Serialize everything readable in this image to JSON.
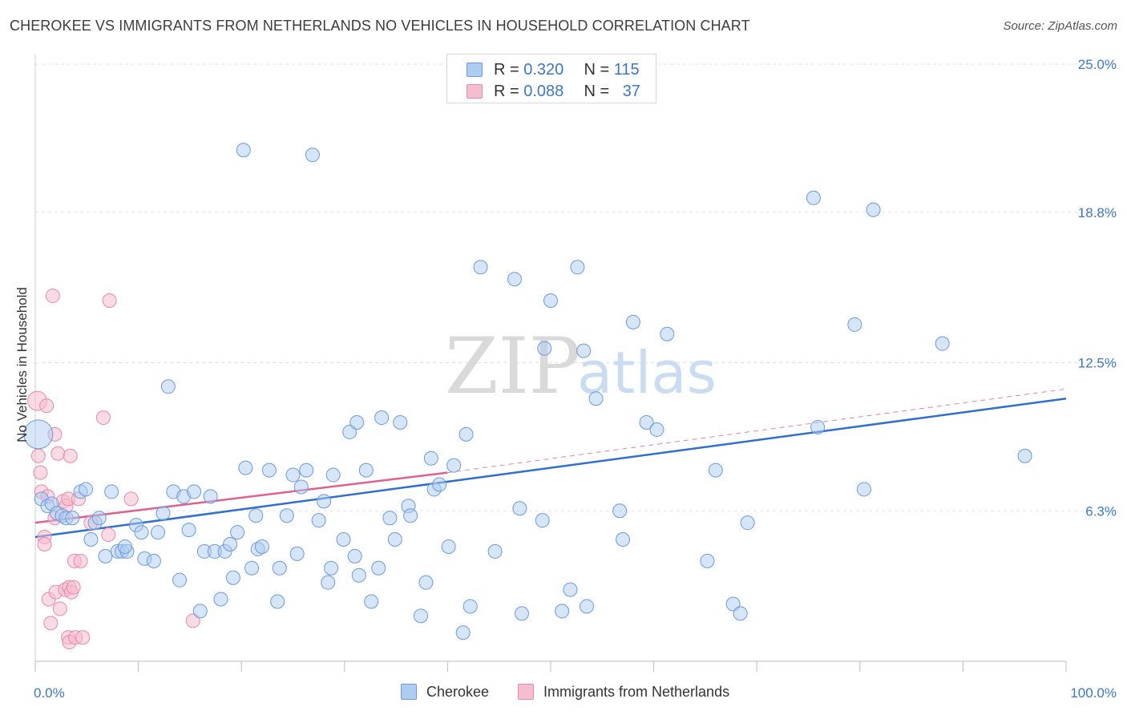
{
  "header": {
    "title": "CHEROKEE VS IMMIGRANTS FROM NETHERLANDS NO VEHICLES IN HOUSEHOLD CORRELATION CHART",
    "source": "Source: ZipAtlas.com"
  },
  "watermark": {
    "zip": "ZIP",
    "atlas": "atlas"
  },
  "legend_top": {
    "rows": [
      {
        "r_label": "R = ",
        "r_value": "0.320",
        "n_label": "N = ",
        "n_value": "115"
      },
      {
        "r_label": "R = ",
        "r_value": "0.088",
        "n_label": "N = ",
        "n_value": "37"
      }
    ]
  },
  "legend_bottom": {
    "items": [
      "Cherokee",
      "Immigrants from Netherlands"
    ]
  },
  "colors": {
    "blue_fill": "#aecbf0",
    "blue_stroke": "#6a9be0",
    "blue_line": "#2f6fd0",
    "pink_fill": "#f6bcd0",
    "pink_stroke": "#e889a8",
    "pink_line": "#e0608e",
    "axis_label": "#3b78c8",
    "grid": "#e3e3e3"
  },
  "chart_data": {
    "type": "scatter",
    "title": "CHEROKEE VS IMMIGRANTS FROM NETHERLANDS NO VEHICLES IN HOUSEHOLD CORRELATION CHART",
    "xlabel": "",
    "ylabel": "No Vehicles in Household",
    "xlim": [
      0,
      100
    ],
    "ylim": [
      0,
      25
    ],
    "x_tick_labels": [
      "0.0%",
      "100.0%"
    ],
    "y_ticks": [
      6.3,
      12.5,
      18.8,
      25.0
    ],
    "y_tick_labels": [
      "6.3%",
      "12.5%",
      "18.8%",
      "25.0%"
    ],
    "grid": true,
    "legend_position": "top-center",
    "series": [
      {
        "name": "Cherokee",
        "r": 0.32,
        "n": 115,
        "trend": {
          "x": [
            0,
            100
          ],
          "y": [
            5.2,
            11.0
          ],
          "style": "solid"
        },
        "points": [
          [
            0.3,
            9.5
          ],
          [
            0.6,
            6.8
          ],
          [
            1.2,
            6.5
          ],
          [
            1.6,
            6.6
          ],
          [
            2.1,
            6.2
          ],
          [
            2.6,
            6.1
          ],
          [
            3.0,
            6.0
          ],
          [
            3.6,
            6.0
          ],
          [
            4.4,
            7.1
          ],
          [
            4.9,
            7.2
          ],
          [
            5.8,
            5.8
          ],
          [
            5.4,
            5.1
          ],
          [
            6.2,
            6.0
          ],
          [
            6.8,
            4.4
          ],
          [
            7.4,
            7.1
          ],
          [
            8.0,
            4.6
          ],
          [
            8.4,
            4.6
          ],
          [
            8.9,
            4.6
          ],
          [
            8.7,
            4.8
          ],
          [
            9.8,
            5.7
          ],
          [
            10.3,
            5.4
          ],
          [
            10.6,
            4.3
          ],
          [
            11.5,
            4.2
          ],
          [
            11.9,
            5.4
          ],
          [
            12.4,
            6.2
          ],
          [
            12.9,
            11.5
          ],
          [
            13.4,
            7.1
          ],
          [
            14.0,
            3.4
          ],
          [
            14.4,
            6.9
          ],
          [
            14.9,
            5.5
          ],
          [
            15.4,
            7.1
          ],
          [
            16.0,
            2.1
          ],
          [
            16.4,
            4.6
          ],
          [
            17.0,
            6.9
          ],
          [
            17.4,
            4.6
          ],
          [
            18.0,
            2.6
          ],
          [
            18.4,
            4.6
          ],
          [
            18.9,
            4.9
          ],
          [
            19.2,
            3.5
          ],
          [
            19.6,
            5.4
          ],
          [
            20.2,
            21.4
          ],
          [
            20.4,
            8.1
          ],
          [
            21.0,
            3.9
          ],
          [
            21.4,
            6.1
          ],
          [
            21.6,
            4.7
          ],
          [
            22.0,
            4.8
          ],
          [
            22.7,
            8.0
          ],
          [
            23.5,
            2.5
          ],
          [
            23.7,
            3.9
          ],
          [
            24.4,
            6.1
          ],
          [
            25.0,
            7.8
          ],
          [
            25.4,
            4.5
          ],
          [
            25.8,
            7.3
          ],
          [
            26.3,
            8.0
          ],
          [
            26.9,
            21.2
          ],
          [
            27.5,
            5.9
          ],
          [
            28.0,
            6.7
          ],
          [
            28.4,
            3.3
          ],
          [
            28.9,
            7.8
          ],
          [
            28.7,
            3.9
          ],
          [
            29.9,
            5.1
          ],
          [
            31.0,
            4.4
          ],
          [
            31.4,
            3.6
          ],
          [
            30.5,
            9.6
          ],
          [
            31.2,
            10.0
          ],
          [
            32.1,
            8.0
          ],
          [
            32.6,
            2.5
          ],
          [
            33.3,
            3.9
          ],
          [
            33.6,
            10.2
          ],
          [
            34.4,
            6.0
          ],
          [
            34.9,
            5.1
          ],
          [
            35.4,
            10.0
          ],
          [
            36.2,
            6.5
          ],
          [
            36.4,
            6.1
          ],
          [
            37.4,
            1.9
          ],
          [
            37.9,
            3.3
          ],
          [
            38.4,
            8.5
          ],
          [
            38.7,
            7.2
          ],
          [
            39.2,
            7.4
          ],
          [
            40.1,
            4.8
          ],
          [
            40.6,
            8.2
          ],
          [
            41.5,
            1.2
          ],
          [
            41.8,
            9.5
          ],
          [
            42.2,
            2.3
          ],
          [
            43.2,
            16.5
          ],
          [
            44.6,
            4.6
          ],
          [
            47.2,
            2.0
          ],
          [
            46.5,
            16.0
          ],
          [
            47.0,
            6.4
          ],
          [
            49.2,
            5.9
          ],
          [
            49.4,
            13.1
          ],
          [
            50.0,
            15.1
          ],
          [
            51.1,
            2.1
          ],
          [
            51.9,
            3.0
          ],
          [
            52.6,
            16.5
          ],
          [
            53.2,
            13.0
          ],
          [
            53.5,
            2.3
          ],
          [
            54.4,
            11.0
          ],
          [
            56.7,
            6.3
          ],
          [
            57.0,
            5.1
          ],
          [
            58.0,
            14.2
          ],
          [
            59.3,
            10.0
          ],
          [
            60.3,
            9.7
          ],
          [
            61.3,
            13.7
          ],
          [
            65.2,
            4.2
          ],
          [
            66.0,
            8.0
          ],
          [
            67.7,
            2.4
          ],
          [
            68.4,
            2.0
          ],
          [
            69.1,
            5.8
          ],
          [
            75.5,
            19.4
          ],
          [
            75.9,
            9.8
          ],
          [
            79.5,
            14.1
          ],
          [
            80.4,
            7.2
          ],
          [
            81.3,
            18.9
          ],
          [
            88.0,
            13.3
          ],
          [
            96.0,
            8.6
          ]
        ]
      },
      {
        "name": "Immigrants from Netherlands",
        "r": 0.088,
        "n": 37,
        "trend": {
          "x": [
            0,
            40
          ],
          "y": [
            5.8,
            7.9
          ],
          "style": "solid",
          "extended": {
            "x": [
              40,
              100
            ],
            "y": [
              7.9,
              11.4
            ],
            "style": "dashed"
          }
        },
        "points": [
          [
            0.2,
            10.9
          ],
          [
            0.3,
            8.6
          ],
          [
            0.5,
            7.9
          ],
          [
            0.6,
            7.1
          ],
          [
            0.9,
            5.2
          ],
          [
            0.9,
            4.9
          ],
          [
            1.1,
            10.7
          ],
          [
            1.2,
            6.9
          ],
          [
            1.3,
            2.6
          ],
          [
            1.5,
            1.6
          ],
          [
            1.7,
            15.3
          ],
          [
            1.9,
            6.0
          ],
          [
            2.0,
            2.9
          ],
          [
            1.9,
            9.5
          ],
          [
            2.2,
            8.7
          ],
          [
            2.4,
            2.2
          ],
          [
            2.7,
            6.7
          ],
          [
            2.9,
            3.0
          ],
          [
            3.0,
            6.5
          ],
          [
            3.2,
            6.8
          ],
          [
            3.3,
            3.1
          ],
          [
            3.4,
            8.6
          ],
          [
            3.5,
            2.9
          ],
          [
            3.2,
            1.0
          ],
          [
            3.3,
            0.8
          ],
          [
            3.7,
            3.1
          ],
          [
            3.8,
            4.2
          ],
          [
            3.9,
            1.0
          ],
          [
            4.2,
            6.8
          ],
          [
            4.6,
            1.0
          ],
          [
            4.4,
            4.2
          ],
          [
            5.4,
            5.8
          ],
          [
            6.6,
            10.2
          ],
          [
            7.1,
            5.3
          ],
          [
            7.2,
            15.1
          ],
          [
            9.3,
            6.8
          ],
          [
            15.3,
            1.7
          ]
        ]
      }
    ]
  }
}
